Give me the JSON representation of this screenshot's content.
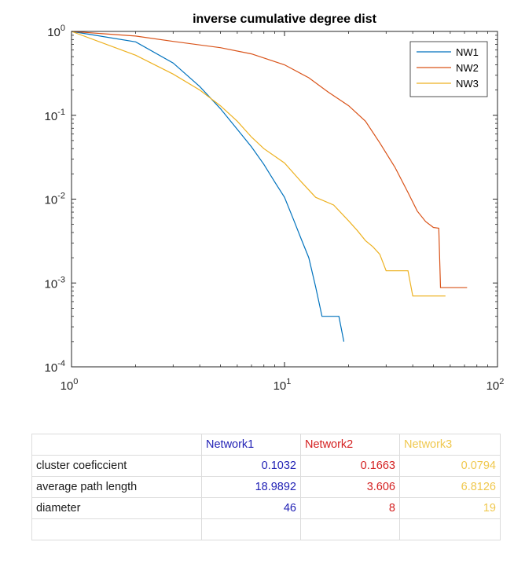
{
  "chart_data": {
    "type": "line",
    "title": "inverse cumulative degree dist",
    "xlabel": "",
    "ylabel": "",
    "x_scale": "log",
    "y_scale": "log",
    "xlim": [
      1,
      100
    ],
    "ylim": [
      0.0001,
      1
    ],
    "x_ticks": [
      {
        "base": "10",
        "exp": "0"
      },
      {
        "base": "10",
        "exp": "1"
      },
      {
        "base": "10",
        "exp": "2"
      }
    ],
    "y_ticks": [
      {
        "base": "10",
        "exp": "0"
      },
      {
        "base": "10",
        "exp": "-1"
      },
      {
        "base": "10",
        "exp": "-2"
      },
      {
        "base": "10",
        "exp": "-3"
      },
      {
        "base": "10",
        "exp": "-4"
      }
    ],
    "grid": false,
    "legend_position": "top-right",
    "series": [
      {
        "name": "NW1",
        "color": "#0072BD",
        "x": [
          1,
          2,
          3,
          4,
          5,
          6,
          7,
          8,
          9,
          10,
          11,
          12,
          13,
          14,
          15,
          16,
          17,
          18,
          19
        ],
        "y": [
          1,
          0.75,
          0.42,
          0.22,
          0.12,
          0.068,
          0.042,
          0.026,
          0.016,
          0.0105,
          0.0058,
          0.0033,
          0.002,
          0.0009,
          0.0004,
          0.0004,
          0.0004,
          0.0004,
          0.0002
        ],
        "step_x": false
      },
      {
        "name": "NW2",
        "color": "#D95319",
        "x": [
          1,
          2,
          3,
          5,
          7,
          10,
          13,
          16,
          20,
          24,
          28,
          33,
          38,
          42,
          46,
          50,
          53,
          54,
          55,
          72
        ],
        "y": [
          1,
          0.88,
          0.76,
          0.64,
          0.54,
          0.4,
          0.28,
          0.19,
          0.13,
          0.085,
          0.047,
          0.024,
          0.012,
          0.0072,
          0.0054,
          0.0046,
          0.0045,
          0.00088,
          0.00088,
          0.00088
        ],
        "step_x": false
      },
      {
        "name": "NW3",
        "color": "#EDB120",
        "x": [
          1,
          2,
          3,
          4,
          5,
          6,
          7,
          8,
          10,
          12,
          14,
          17,
          20,
          22,
          24,
          26,
          28,
          30,
          35,
          38,
          40,
          57
        ],
        "y": [
          1,
          0.52,
          0.31,
          0.2,
          0.13,
          0.085,
          0.055,
          0.04,
          0.027,
          0.016,
          0.0105,
          0.0085,
          0.0055,
          0.0042,
          0.0032,
          0.0027,
          0.0022,
          0.0014,
          0.0014,
          0.0014,
          0.0007,
          0.0007
        ],
        "step_x": false
      }
    ]
  },
  "stats_table": {
    "header": [
      "",
      "Network1",
      "Network2",
      "Network3"
    ],
    "header_colors": [
      "#1a1a1a",
      "#1f1fb4",
      "#d42020",
      "#f0c84e"
    ],
    "rows": [
      {
        "label": "cluster coeficcient",
        "values": [
          "0.1032",
          "0.1663",
          "0.0794"
        ]
      },
      {
        "label": "average path length",
        "values": [
          "18.9892",
          "3.606",
          "6.8126"
        ]
      },
      {
        "label": "diameter",
        "values": [
          "46",
          "8",
          "19"
        ]
      }
    ]
  }
}
